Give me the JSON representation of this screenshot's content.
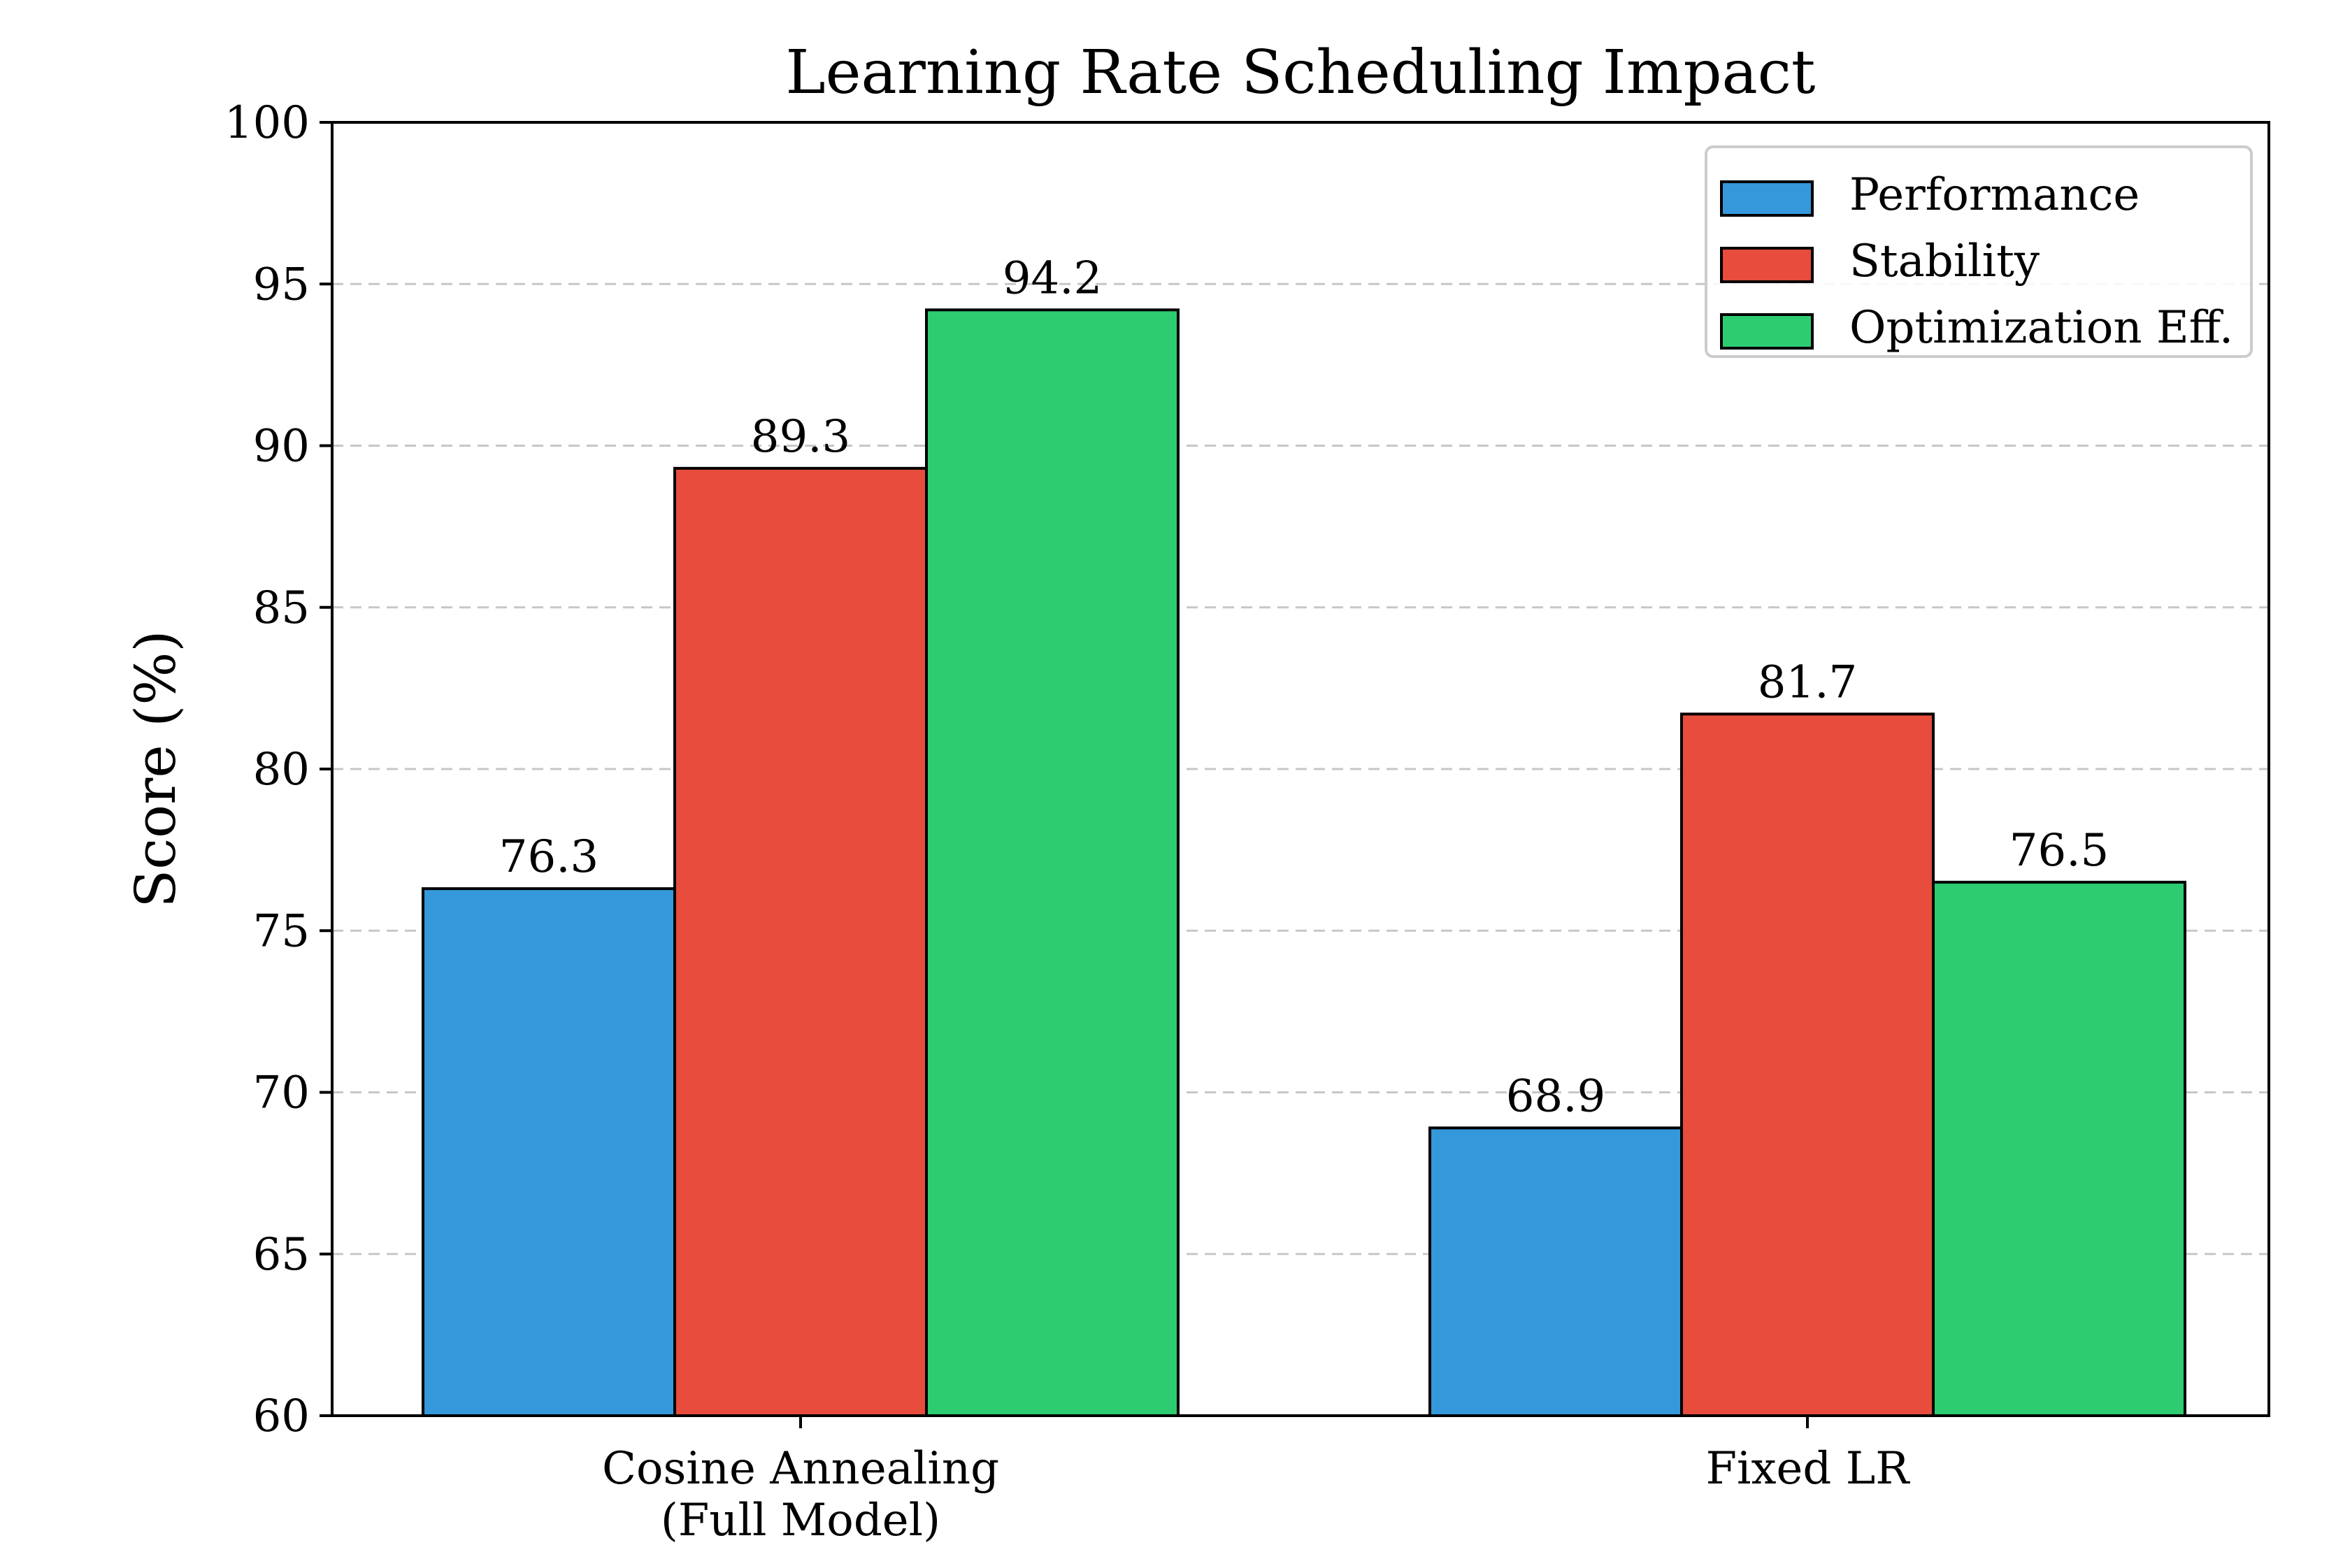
{
  "chart_data": {
    "type": "bar",
    "title": "Learning Rate Scheduling Impact",
    "xlabel": "",
    "ylabel": "Score (%)",
    "ylim": [
      60,
      100
    ],
    "yticks": [
      60,
      65,
      70,
      75,
      80,
      85,
      90,
      95,
      100
    ],
    "grid": "y-dashed",
    "legend_position": "top-right",
    "categories": [
      {
        "line1": "Cosine Annealing",
        "line2": "(Full Model)"
      },
      {
        "line1": "Fixed LR",
        "line2": ""
      }
    ],
    "series": [
      {
        "name": "Performance",
        "color": "#3498db",
        "values": [
          76.3,
          68.9
        ],
        "labels": [
          "76.3",
          "68.9"
        ]
      },
      {
        "name": "Stability",
        "color": "#e74c3c",
        "values": [
          89.3,
          81.7
        ],
        "labels": [
          "89.3",
          "81.7"
        ]
      },
      {
        "name": "Optimization Eff.",
        "color": "#2ecc71",
        "values": [
          94.2,
          76.5
        ],
        "labels": [
          "94.2",
          "76.5"
        ]
      }
    ]
  }
}
